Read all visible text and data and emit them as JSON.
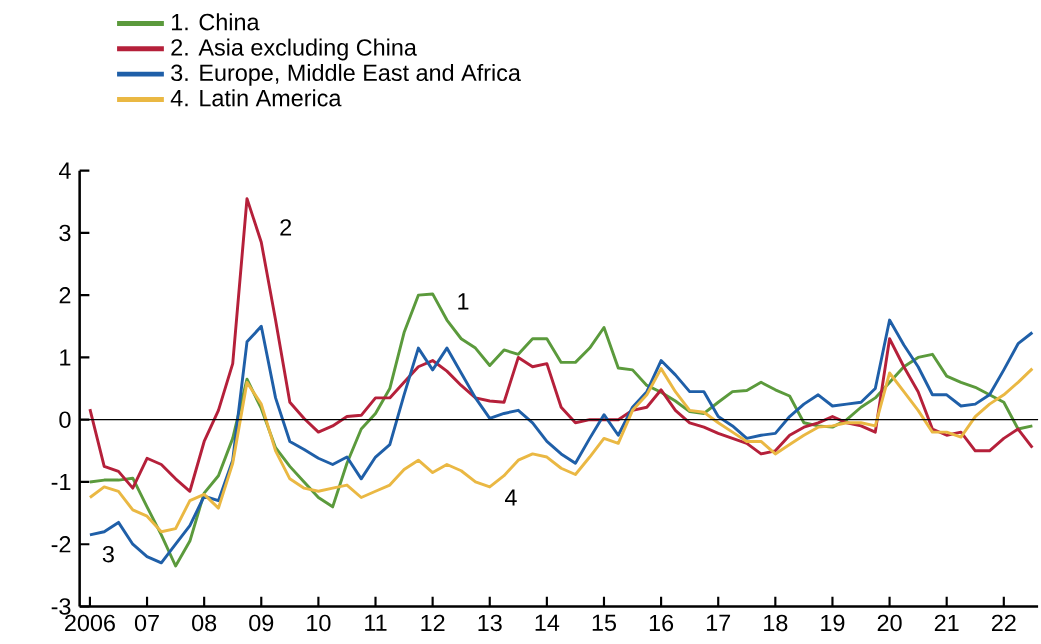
{
  "chart_data": {
    "type": "line",
    "x": [
      2006.0,
      2006.25,
      2006.5,
      2006.75,
      2007.0,
      2007.25,
      2007.5,
      2007.75,
      2008.0,
      2008.25,
      2008.5,
      2008.75,
      2009.0,
      2009.25,
      2009.5,
      2009.75,
      2010.0,
      2010.25,
      2010.5,
      2010.75,
      2011.0,
      2011.25,
      2011.5,
      2011.75,
      2012.0,
      2012.25,
      2012.5,
      2012.75,
      2013.0,
      2013.25,
      2013.5,
      2013.75,
      2014.0,
      2014.25,
      2014.5,
      2014.75,
      2015.0,
      2015.25,
      2015.5,
      2015.75,
      2016.0,
      2016.25,
      2016.5,
      2016.75,
      2017.0,
      2017.25,
      2017.5,
      2017.75,
      2018.0,
      2018.25,
      2018.5,
      2018.75,
      2019.0,
      2019.25,
      2019.5,
      2019.75,
      2020.0,
      2020.25,
      2020.5,
      2020.75,
      2021.0,
      2021.25,
      2021.5,
      2021.75,
      2022.0,
      2022.25,
      2022.5
    ],
    "series": [
      {
        "name": "1. China",
        "color": "#5b9a3c",
        "values": [
          -1.0,
          -0.97,
          -0.97,
          -0.94,
          -1.4,
          -1.85,
          -2.35,
          -1.95,
          -1.18,
          -0.9,
          -0.3,
          0.65,
          0.18,
          -0.45,
          -0.75,
          -1.0,
          -1.25,
          -1.4,
          -0.7,
          -0.15,
          0.1,
          0.5,
          1.4,
          2.0,
          2.02,
          1.6,
          1.3,
          1.15,
          0.87,
          1.12,
          1.05,
          1.3,
          1.3,
          0.92,
          0.92,
          1.15,
          1.48,
          0.83,
          0.8,
          0.55,
          0.44,
          0.3,
          0.13,
          0.1,
          0.28,
          0.45,
          0.47,
          0.6,
          0.48,
          0.38,
          -0.05,
          -0.1,
          -0.12,
          0.0,
          0.2,
          0.35,
          0.6,
          0.85,
          1.0,
          1.05,
          0.7,
          0.6,
          0.52,
          0.4,
          0.28,
          -0.15,
          -0.1
        ]
      },
      {
        "name": "2. Asia excluding China",
        "color": "#b5203a",
        "values": [
          0.17,
          -0.75,
          -0.83,
          -1.1,
          -0.62,
          -0.72,
          -0.95,
          -1.15,
          -0.35,
          0.15,
          0.9,
          3.55,
          2.85,
          1.6,
          0.28,
          0.02,
          -0.2,
          -0.1,
          0.05,
          0.07,
          0.35,
          0.35,
          0.6,
          0.85,
          0.95,
          0.78,
          0.55,
          0.35,
          0.3,
          0.28,
          1.0,
          0.85,
          0.9,
          0.2,
          -0.05,
          0.0,
          0.0,
          0.0,
          0.15,
          0.2,
          0.48,
          0.15,
          -0.05,
          -0.12,
          -0.22,
          -0.3,
          -0.38,
          -0.55,
          -0.5,
          -0.25,
          -0.12,
          -0.05,
          0.05,
          -0.05,
          -0.1,
          -0.2,
          1.3,
          0.85,
          0.45,
          -0.15,
          -0.25,
          -0.2,
          -0.5,
          -0.5,
          -0.3,
          -0.15,
          -0.45
        ]
      },
      {
        "name": "3. Europe, Middle East and Africa",
        "color": "#1f5fa8",
        "values": [
          -1.85,
          -1.8,
          -1.65,
          -2.0,
          -2.2,
          -2.3,
          -2.0,
          -1.7,
          -1.23,
          -1.3,
          -0.65,
          1.25,
          1.5,
          0.35,
          -0.35,
          -0.48,
          -0.62,
          -0.72,
          -0.6,
          -0.95,
          -0.6,
          -0.4,
          0.4,
          1.15,
          0.8,
          1.15,
          0.75,
          0.35,
          0.02,
          0.1,
          0.15,
          -0.05,
          -0.35,
          -0.55,
          -0.7,
          -0.3,
          0.08,
          -0.25,
          0.2,
          0.45,
          0.95,
          0.72,
          0.45,
          0.45,
          0.05,
          -0.1,
          -0.3,
          -0.25,
          -0.22,
          0.05,
          0.25,
          0.4,
          0.22,
          0.25,
          0.28,
          0.5,
          1.6,
          1.2,
          0.85,
          0.4,
          0.4,
          0.22,
          0.25,
          0.4,
          0.8,
          1.22,
          1.4
        ]
      },
      {
        "name": "4. Latin America",
        "color": "#eab843",
        "values": [
          -1.25,
          -1.08,
          -1.15,
          -1.45,
          -1.55,
          -1.8,
          -1.75,
          -1.3,
          -1.2,
          -1.42,
          -0.7,
          0.6,
          0.25,
          -0.5,
          -0.95,
          -1.1,
          -1.15,
          -1.1,
          -1.05,
          -1.25,
          -1.15,
          -1.05,
          -0.8,
          -0.65,
          -0.85,
          -0.72,
          -0.82,
          -1.0,
          -1.08,
          -0.9,
          -0.65,
          -0.55,
          -0.6,
          -0.78,
          -0.88,
          -0.6,
          -0.3,
          -0.38,
          0.15,
          0.4,
          0.82,
          0.45,
          0.15,
          0.12,
          -0.05,
          -0.2,
          -0.35,
          -0.35,
          -0.55,
          -0.4,
          -0.25,
          -0.12,
          -0.1,
          -0.05,
          -0.05,
          -0.1,
          0.75,
          0.45,
          0.15,
          -0.2,
          -0.2,
          -0.28,
          0.05,
          0.25,
          0.4,
          0.6,
          0.82
        ]
      }
    ],
    "xlim": [
      2005.82,
      2022.6
    ],
    "xticks": [
      2006,
      {
        "value": 2007,
        "label": "07"
      },
      {
        "value": 2008,
        "label": "08"
      },
      {
        "value": 2009,
        "label": "09"
      },
      {
        "value": 2010,
        "label": "10"
      },
      {
        "value": 2011,
        "label": "11"
      },
      {
        "value": 2012,
        "label": "12"
      },
      {
        "value": 2013,
        "label": "13"
      },
      {
        "value": 2014,
        "label": "14"
      },
      {
        "value": 2015,
        "label": "15"
      },
      {
        "value": 2016,
        "label": "16"
      },
      {
        "value": 2017,
        "label": "17"
      },
      {
        "value": 2018,
        "label": "18"
      },
      {
        "value": 2019,
        "label": "19"
      },
      {
        "value": 2020,
        "label": "20"
      },
      {
        "value": 2021,
        "label": "21"
      },
      {
        "value": 2022,
        "label": "22"
      }
    ],
    "ylim": [
      -3,
      4
    ],
    "yticks": [
      -3,
      -2,
      -1,
      0,
      1,
      2,
      3,
      4
    ],
    "ref_lines": [
      {
        "axis": "y",
        "value": 0,
        "color": "#000000"
      }
    ],
    "annotations": [
      "1",
      "2",
      "3",
      "4"
    ],
    "legend": "top left",
    "line_style": "solid"
  }
}
